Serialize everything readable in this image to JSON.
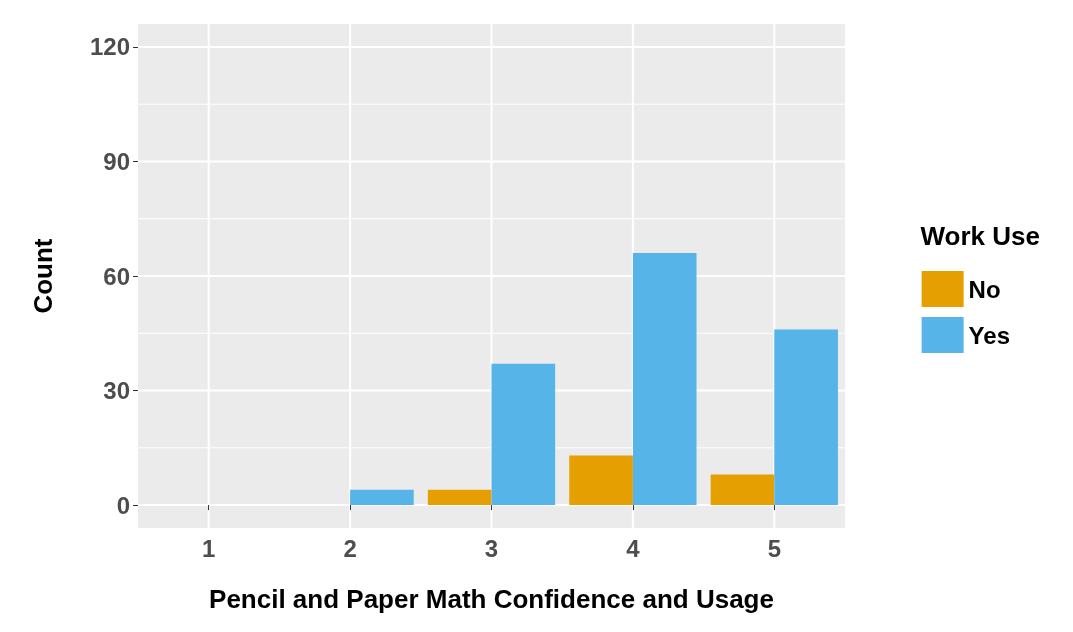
{
  "chart_data": {
    "type": "bar",
    "xlabel": "Pencil and Paper Math Confidence and Usage",
    "ylabel": "Count",
    "legend_title": "Work Use",
    "categories": [
      "1",
      "2",
      "3",
      "4",
      "5"
    ],
    "series": [
      {
        "name": "No",
        "color": "#e69f00",
        "values": [
          null,
          null,
          4,
          13,
          8
        ]
      },
      {
        "name": "Yes",
        "color": "#56b4e9",
        "values": [
          null,
          4,
          37,
          66,
          46
        ]
      }
    ],
    "ylim": [
      -6,
      126
    ],
    "yticks": [
      0,
      30,
      60,
      90,
      120
    ],
    "grid": true,
    "legend": "right"
  }
}
